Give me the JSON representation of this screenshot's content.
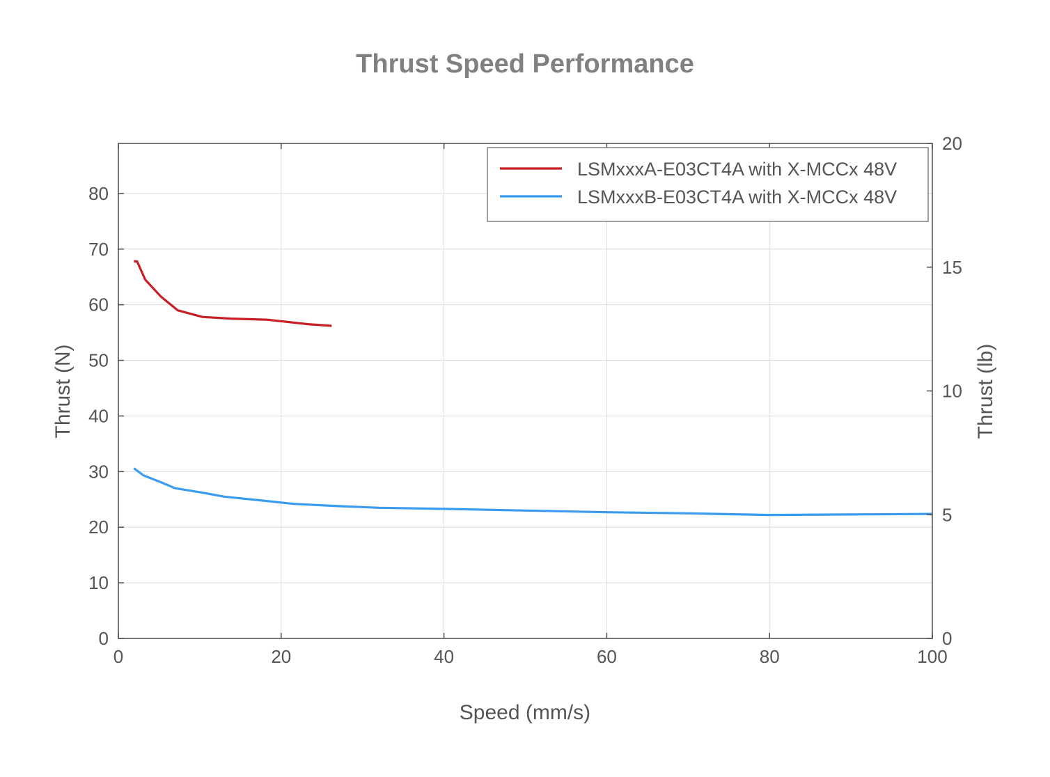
{
  "chart_data": {
    "type": "line",
    "title": "Thrust Speed Performance",
    "xlabel": "Speed (mm/s)",
    "ylabel": "Thrust (N)",
    "y2label": "Thrust (lb)",
    "xlim": [
      0,
      100
    ],
    "ylim": [
      0,
      89
    ],
    "y2lim": [
      0,
      20
    ],
    "xticks": [
      0,
      20,
      40,
      60,
      80,
      100
    ],
    "yticks": [
      0,
      10,
      20,
      30,
      40,
      50,
      60,
      70,
      80
    ],
    "y2ticks": [
      0,
      5,
      10,
      15,
      20
    ],
    "grid": true,
    "legend_position": "top-right",
    "series": [
      {
        "name": "LSMxxxA-E03CT4A with X-MCCx 48V",
        "color": "#c62026",
        "x": [
          1.9,
          2.3,
          3.3,
          5.2,
          7.3,
          10.3,
          13.8,
          18.3,
          23.3,
          26.2
        ],
        "y": [
          67.8,
          67.8,
          64.5,
          61.5,
          59.0,
          57.8,
          57.5,
          57.3,
          56.5,
          56.2
        ]
      },
      {
        "name": "LSMxxxB-E03CT4A with X-MCCx 48V",
        "color": "#3a9cf0",
        "x": [
          1.9,
          3.1,
          5.2,
          7.0,
          10.0,
          13.0,
          17.0,
          21.5,
          27.0,
          32.0,
          40.0,
          50.0,
          60.0,
          70.0,
          80.0,
          90.0,
          100.0
        ],
        "y": [
          30.6,
          29.3,
          28.1,
          27.0,
          26.3,
          25.5,
          24.9,
          24.2,
          23.8,
          23.5,
          23.3,
          23.0,
          22.7,
          22.5,
          22.2,
          22.3,
          22.4
        ]
      }
    ]
  }
}
